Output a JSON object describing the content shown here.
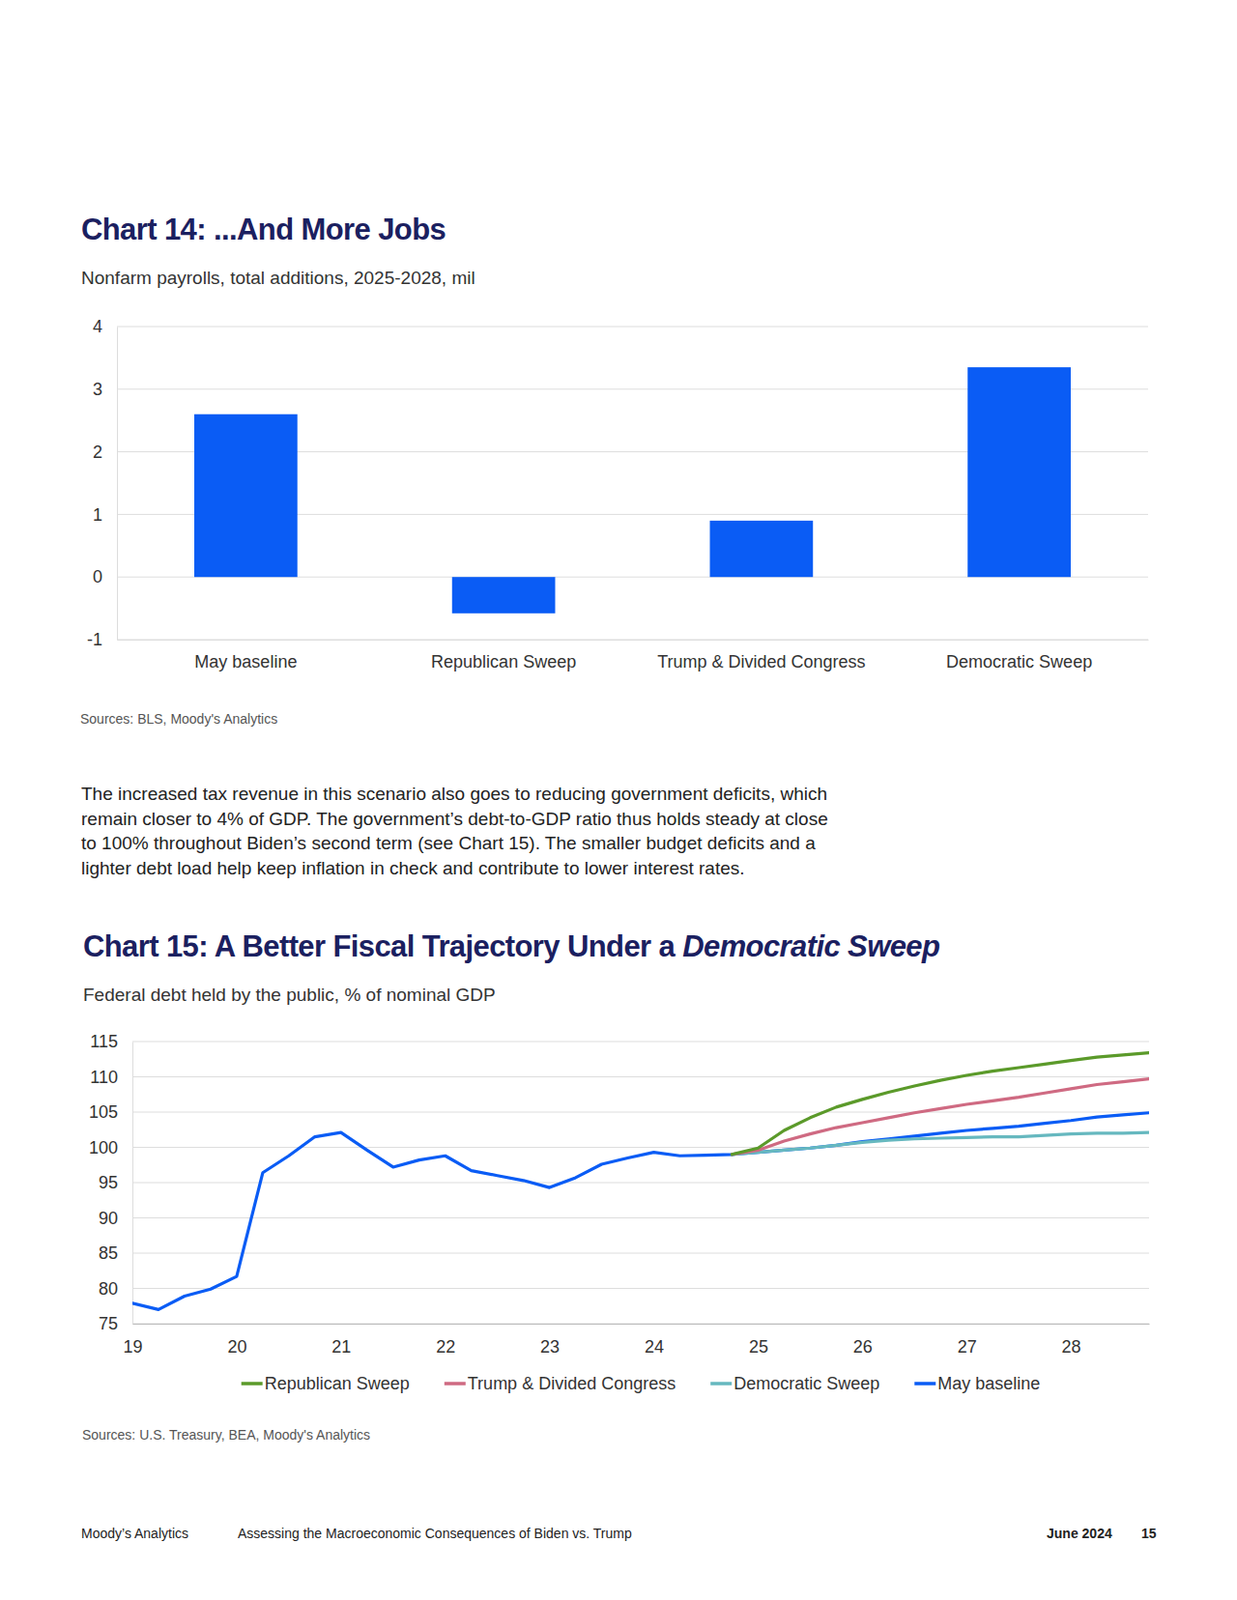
{
  "chart_data": [
    {
      "type": "bar",
      "title": "Chart 14: ...And More Jobs",
      "subtitle": "Nonfarm payrolls, total additions, 2025-2028, mil",
      "source": "Sources: BLS, Moody's Analytics",
      "categories": [
        "May baseline",
        "Republican Sweep",
        "Trump & Divided Congress",
        "Democratic Sweep"
      ],
      "values": [
        2.6,
        -0.58,
        0.9,
        3.35
      ],
      "color": "#0a5cf5",
      "ylim": [
        -1,
        4
      ],
      "yticks": [
        -1,
        0,
        1,
        2,
        3,
        4
      ],
      "grid": true
    },
    {
      "type": "line",
      "title": "Chart 15: A Better Fiscal Trajectory Under a",
      "title_emphasis": "Democratic Sweep",
      "subtitle": "Federal debt held by the public, % of nominal GDP",
      "source": "Sources: U.S. Treasury, BEA, Moody's Analytics",
      "x": [
        19,
        19.25,
        19.5,
        19.75,
        20,
        20.25,
        20.5,
        20.75,
        21,
        21.25,
        21.5,
        21.75,
        22,
        22.25,
        22.5,
        22.75,
        23,
        23.25,
        23.5,
        23.75,
        24,
        24.25,
        24.5,
        24.75,
        25,
        25.25,
        25.5,
        25.75,
        26,
        26.25,
        26.5,
        26.75,
        27,
        27.25,
        27.5,
        27.75,
        28,
        28.25,
        28.5,
        28.75
      ],
      "series": [
        {
          "name": "Republican Sweep",
          "color": "#5b9a2a",
          "values": [
            null,
            null,
            null,
            null,
            null,
            null,
            null,
            null,
            null,
            null,
            null,
            null,
            null,
            null,
            null,
            null,
            null,
            null,
            null,
            null,
            null,
            null,
            null,
            99.0,
            99.9,
            102.4,
            104.2,
            105.7,
            106.8,
            107.8,
            108.7,
            109.5,
            110.2,
            110.8,
            111.3,
            111.8,
            112.3,
            112.8,
            113.1,
            113.4
          ]
        },
        {
          "name": "Trump & Divided Congress",
          "color": "#cf6a82",
          "values": [
            null,
            null,
            null,
            null,
            null,
            null,
            null,
            null,
            null,
            null,
            null,
            null,
            null,
            null,
            null,
            null,
            null,
            null,
            null,
            null,
            null,
            null,
            null,
            99.0,
            99.6,
            100.9,
            101.9,
            102.8,
            103.5,
            104.2,
            104.9,
            105.5,
            106.1,
            106.6,
            107.1,
            107.7,
            108.3,
            108.9,
            109.3,
            109.7
          ]
        },
        {
          "name": "Democratic Sweep",
          "color": "#66b8bf",
          "values": [
            null,
            null,
            null,
            null,
            null,
            null,
            null,
            null,
            null,
            null,
            null,
            null,
            null,
            null,
            null,
            null,
            null,
            null,
            null,
            null,
            null,
            null,
            null,
            99.0,
            99.3,
            99.6,
            99.9,
            100.3,
            100.7,
            101.0,
            101.2,
            101.3,
            101.4,
            101.5,
            101.5,
            101.7,
            101.9,
            102.0,
            102.0,
            102.1
          ]
        },
        {
          "name": "May baseline",
          "color": "#0a5cf5",
          "values": [
            77.9,
            77.0,
            78.9,
            79.9,
            81.7,
            96.4,
            98.8,
            101.5,
            102.1,
            99.6,
            97.2,
            98.2,
            98.8,
            96.7,
            96.0,
            95.3,
            94.3,
            95.7,
            97.6,
            98.5,
            99.3,
            98.8,
            98.9,
            99.0,
            99.3,
            99.6,
            99.9,
            100.3,
            100.8,
            101.2,
            101.6,
            102.0,
            102.4,
            102.7,
            103.0,
            103.4,
            103.8,
            104.3,
            104.6,
            104.9
          ]
        }
      ],
      "xlim": [
        19,
        28.75
      ],
      "xticks": [
        19,
        20,
        21,
        22,
        23,
        24,
        25,
        26,
        27,
        28
      ],
      "ylim": [
        75,
        115
      ],
      "yticks": [
        75,
        80,
        85,
        90,
        95,
        100,
        105,
        110,
        115
      ],
      "grid": true,
      "legend": "bottom"
    }
  ],
  "paragraph": [
    "The increased tax revenue in this scenario also goes to reducing government deficits, which",
    "remain closer to 4% of GDP. The government’s debt-to-GDP ratio thus holds steady at close",
    "to 100% throughout Biden’s second term (see Chart 15). The smaller budget deficits and a",
    "lighter debt load help keep inflation in check and contribute to lower interest rates."
  ],
  "footer": {
    "publisher": "Moody’s Analytics",
    "report": "Assessing the Macroeconomic Consequences of Biden vs. Trump",
    "date": "June 2024",
    "page": "15"
  }
}
